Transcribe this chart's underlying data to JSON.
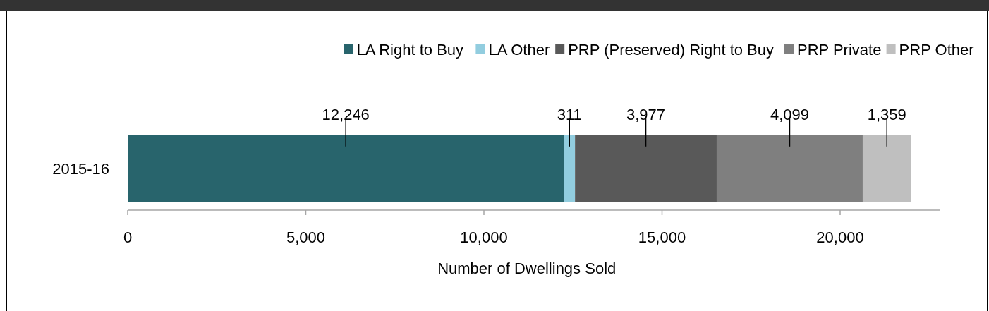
{
  "chart_data": {
    "type": "bar",
    "orientation": "horizontal",
    "stacked": true,
    "categories": [
      "2015-16"
    ],
    "series": [
      {
        "name": "LA Right to Buy",
        "color": "#28646c",
        "values": [
          12246
        ],
        "value_labels": [
          "12,246"
        ]
      },
      {
        "name": "LA Other",
        "color": "#92cddf",
        "values": [
          311
        ],
        "value_labels": [
          "311"
        ]
      },
      {
        "name": "PRP (Preserved) Right to Buy",
        "color": "#595959",
        "values": [
          3977
        ],
        "value_labels": [
          "3,977"
        ]
      },
      {
        "name": "PRP Private",
        "color": "#7f7f7f",
        "values": [
          4099
        ],
        "value_labels": [
          "4,099"
        ]
      },
      {
        "name": "PRP Other",
        "color": "#bfbfbf",
        "values": [
          1359
        ],
        "value_labels": [
          "1,359"
        ]
      }
    ],
    "xlabel": "Number of Dwellings  Sold",
    "xlim": [
      0,
      22800
    ],
    "xticks": [
      0,
      {
        "value": 5000,
        "label": "5,000"
      },
      {
        "value": 10000,
        "label": "10,000"
      },
      {
        "value": 15000,
        "label": "15,000"
      },
      {
        "value": 20000,
        "label": "20,000"
      }
    ],
    "legend": "top",
    "grid": false
  }
}
